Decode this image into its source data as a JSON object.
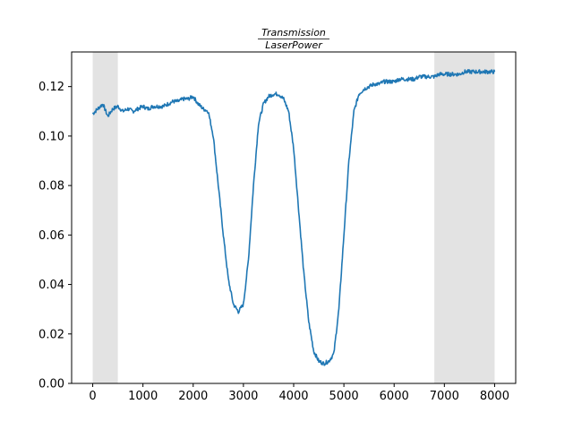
{
  "chart_data": {
    "type": "line",
    "title_numerator": "Transmission",
    "title_denominator": "LaserPower",
    "xlabel": "",
    "ylabel": "",
    "xlim": [
      -420,
      8420
    ],
    "ylim": [
      0.0,
      0.134
    ],
    "x_ticks": [
      0,
      1000,
      2000,
      3000,
      4000,
      5000,
      6000,
      7000,
      8000
    ],
    "x_tick_labels": [
      "0",
      "1000",
      "2000",
      "3000",
      "4000",
      "5000",
      "6000",
      "7000",
      "8000"
    ],
    "y_ticks": [
      0.0,
      0.02,
      0.04,
      0.06,
      0.08,
      0.1,
      0.12
    ],
    "y_tick_labels": [
      "0.00",
      "0.02",
      "0.04",
      "0.06",
      "0.08",
      "0.10",
      "0.12"
    ],
    "grid": false,
    "line_color": "#1f77b4",
    "shade_color": "#e3e3e3",
    "shaded_regions": [
      [
        0,
        500
      ],
      [
        6800,
        8000
      ]
    ],
    "series": [
      {
        "x": [
          0,
          100,
          200,
          300,
          400,
          500,
          600,
          700,
          800,
          900,
          1000,
          1100,
          1200,
          1300,
          1400,
          1500,
          1600,
          1700,
          1800,
          1900,
          2000,
          2100,
          2200,
          2300,
          2400,
          2500,
          2600,
          2700,
          2800,
          2900,
          3000,
          3100,
          3200,
          3300,
          3400,
          3500,
          3600,
          3700,
          3800,
          3900,
          4000,
          4100,
          4200,
          4300,
          4400,
          4500,
          4600,
          4700,
          4800,
          4900,
          5000,
          5100,
          5200,
          5300,
          5400,
          5500,
          5600,
          5700,
          5800,
          5900,
          6000,
          6100,
          6200,
          6300,
          6400,
          6500,
          6600,
          6700,
          6800,
          6900,
          7000,
          7100,
          7200,
          7300,
          7400,
          7500,
          7600,
          7700,
          7800,
          7900,
          8000
        ],
        "values": [
          0.109,
          0.111,
          0.113,
          0.108,
          0.111,
          0.112,
          0.11,
          0.111,
          0.11,
          0.111,
          0.112,
          0.111,
          0.112,
          0.112,
          0.112,
          0.113,
          0.114,
          0.114,
          0.115,
          0.115,
          0.116,
          0.113,
          0.111,
          0.11,
          0.1,
          0.08,
          0.06,
          0.042,
          0.032,
          0.029,
          0.032,
          0.05,
          0.08,
          0.105,
          0.113,
          0.116,
          0.117,
          0.117,
          0.115,
          0.11,
          0.095,
          0.07,
          0.045,
          0.025,
          0.013,
          0.009,
          0.008,
          0.009,
          0.012,
          0.03,
          0.06,
          0.09,
          0.11,
          0.117,
          0.119,
          0.12,
          0.121,
          0.121,
          0.122,
          0.122,
          0.122,
          0.123,
          0.123,
          0.123,
          0.123,
          0.124,
          0.124,
          0.124,
          0.124,
          0.125,
          0.125,
          0.125,
          0.125,
          0.125,
          0.126,
          0.126,
          0.126,
          0.126,
          0.126,
          0.126,
          0.126
        ]
      }
    ]
  }
}
